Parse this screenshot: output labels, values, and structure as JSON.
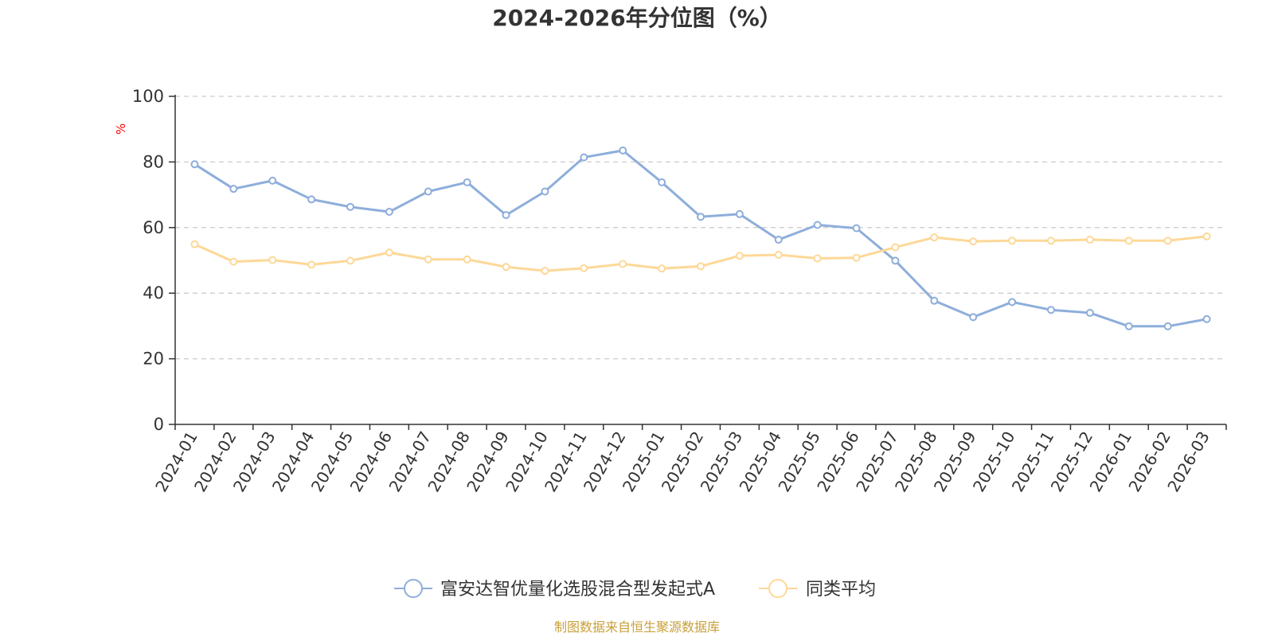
{
  "chart_data": {
    "type": "line",
    "title": "2024-2026年分位图（%）",
    "ylabel": "%",
    "ylim": [
      0,
      100
    ],
    "yticks": [
      0,
      20,
      40,
      60,
      80,
      100
    ],
    "grid": true,
    "categories": [
      "2024-01",
      "2024-02",
      "2024-03",
      "2024-04",
      "2024-05",
      "2024-06",
      "2024-07",
      "2024-08",
      "2024-09",
      "2024-10",
      "2024-11",
      "2024-12",
      "2025-01",
      "2025-02",
      "2025-03",
      "2025-04",
      "2025-05",
      "2025-06",
      "2025-07",
      "2025-08",
      "2025-09",
      "2025-10",
      "2025-11",
      "2025-12",
      "2026-01",
      "2026-02",
      "2026-03"
    ],
    "series": [
      {
        "name": "富安达智优量化选股混合型发起式A",
        "color": "#8eaedb",
        "values": [
          79.3,
          71.8,
          74.3,
          68.6,
          66.3,
          64.8,
          71.0,
          73.8,
          63.8,
          71.0,
          81.4,
          83.5,
          73.8,
          63.3,
          64.1,
          56.3,
          60.8,
          59.8,
          49.9,
          37.7,
          32.7,
          37.3,
          34.9,
          34.0,
          29.9,
          29.9,
          32.1
        ]
      },
      {
        "name": "同类平均",
        "color": "#fdd898",
        "values": [
          54.9,
          49.6,
          50.1,
          48.7,
          49.9,
          52.4,
          50.3,
          50.3,
          48.0,
          46.8,
          47.6,
          48.9,
          47.5,
          48.2,
          51.4,
          51.7,
          50.6,
          50.8,
          54.0,
          57.0,
          55.8,
          56.0,
          56.0,
          56.3,
          56.0,
          56.0,
          57.3
        ]
      }
    ],
    "legend_position": "bottom-center"
  },
  "source_note": "制图数据来自恒生聚源数据库",
  "colors": {
    "axis": "#333333",
    "grid": "#cccccc",
    "unit_label": "#ff0000",
    "source_note": "#c8a03c"
  }
}
